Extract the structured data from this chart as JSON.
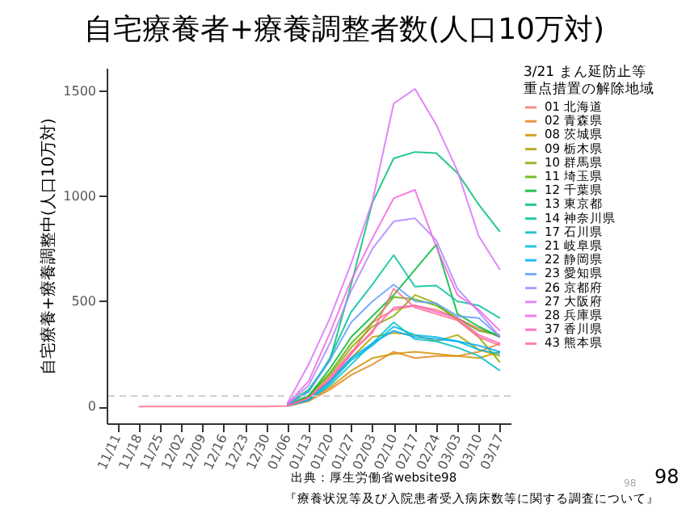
{
  "chart_data": {
    "type": "line",
    "title": "自宅療養者+療養調整者数(人口10万対)",
    "ylabel": "自宅療養+療養調整中(人口10万対)",
    "legend_title": "3/21  まん延防止等重点措置の解除地域",
    "legend": "top right",
    "categories": [
      "11/11",
      "11/18",
      "11/25",
      "12/02",
      "12/09",
      "12/16",
      "12/23",
      "12/30",
      "01/06",
      "01/13",
      "01/20",
      "01/27",
      "02/03",
      "02/10",
      "02/17",
      "02/24",
      "03/03",
      "03/10",
      "03/17"
    ],
    "ylim": [
      -80,
      1610
    ],
    "yticks": [
      0,
      500,
      1000,
      1500
    ],
    "ref_lines": [
      {
        "axis": "y",
        "value": 50,
        "color": "#cccccc",
        "line_style": "dashed"
      }
    ],
    "series": [
      {
        "name": "01 北海道",
        "color": "#F8766D",
        "values": [
          null,
          null,
          null,
          null,
          null,
          null,
          null,
          null,
          5,
          40,
          120,
          250,
          400,
          460,
          480,
          460,
          420,
          370,
          330
        ]
      },
      {
        "name": "02 青森県",
        "color": "#E7851E",
        "values": [
          null,
          null,
          null,
          null,
          null,
          null,
          null,
          null,
          2,
          25,
          80,
          150,
          200,
          260,
          230,
          240,
          240,
          260,
          300
        ]
      },
      {
        "name": "08 茨城県",
        "color": "#D09400",
        "values": [
          null,
          null,
          null,
          null,
          null,
          null,
          null,
          null,
          3,
          30,
          90,
          170,
          230,
          250,
          260,
          250,
          240,
          230,
          260
        ]
      },
      {
        "name": "09 栃木県",
        "color": "#B2A100",
        "values": [
          null,
          null,
          null,
          null,
          null,
          null,
          null,
          null,
          5,
          40,
          120,
          230,
          330,
          350,
          340,
          310,
          340,
          270,
          240
        ]
      },
      {
        "name": "10 群馬県",
        "color": "#8EAB00",
        "values": [
          null,
          null,
          null,
          null,
          null,
          null,
          null,
          null,
          5,
          50,
          150,
          280,
          380,
          430,
          530,
          490,
          410,
          330,
          210
        ]
      },
      {
        "name": "11 埼玉県",
        "color": "#5BB300",
        "values": [
          null,
          null,
          null,
          null,
          null,
          null,
          null,
          null,
          5,
          50,
          160,
          300,
          400,
          520,
          510,
          480,
          420,
          360,
          340
        ]
      },
      {
        "name": "12 千葉県",
        "color": "#00BA38",
        "values": [
          null,
          null,
          null,
          null,
          null,
          null,
          null,
          null,
          5,
          50,
          180,
          330,
          430,
          530,
          650,
          770,
          440,
          380,
          330
        ]
      },
      {
        "name": "13 東京都",
        "color": "#00BF74",
        "values": [
          null,
          null,
          null,
          null,
          null,
          null,
          null,
          null,
          10,
          80,
          220,
          580,
          970,
          1180,
          1210,
          1205,
          1110,
          960,
          830
        ]
      },
      {
        "name": "14 神奈川県",
        "color": "#00C19F",
        "values": [
          null,
          null,
          null,
          null,
          null,
          null,
          null,
          null,
          8,
          70,
          230,
          450,
          580,
          720,
          570,
          575,
          500,
          480,
          420
        ]
      },
      {
        "name": "17 石川県",
        "color": "#00BFC4",
        "values": [
          null,
          null,
          null,
          null,
          null,
          null,
          null,
          null,
          2,
          30,
          100,
          200,
          300,
          400,
          320,
          310,
          280,
          240,
          170
        ]
      },
      {
        "name": "21 岐阜県",
        "color": "#00B9E3",
        "values": [
          null,
          null,
          null,
          null,
          null,
          null,
          null,
          null,
          3,
          30,
          110,
          220,
          290,
          380,
          340,
          330,
          310,
          270,
          250
        ]
      },
      {
        "name": "22 静岡県",
        "color": "#00ADFA",
        "values": [
          null,
          null,
          null,
          null,
          null,
          null,
          null,
          null,
          3,
          35,
          120,
          230,
          300,
          360,
          330,
          320,
          310,
          290,
          260
        ]
      },
      {
        "name": "23 愛知県",
        "color": "#619CFF",
        "values": [
          null,
          null,
          null,
          null,
          null,
          null,
          null,
          null,
          8,
          70,
          220,
          400,
          500,
          580,
          500,
          490,
          430,
          420,
          330
        ]
      },
      {
        "name": "26 京都府",
        "color": "#AE87FF",
        "values": [
          null,
          null,
          null,
          null,
          null,
          null,
          null,
          null,
          10,
          100,
          300,
          550,
          750,
          880,
          895,
          790,
          560,
          450,
          330
        ]
      },
      {
        "name": "27 大阪府",
        "color": "#DB72FB",
        "values": [
          null,
          null,
          null,
          null,
          null,
          null,
          null,
          null,
          15,
          200,
          420,
          680,
          975,
          1440,
          1510,
          1340,
          1120,
          810,
          650
        ]
      },
      {
        "name": "28 兵庫県",
        "color": "#F564E3",
        "values": [
          null,
          null,
          null,
          null,
          null,
          null,
          null,
          null,
          12,
          120,
          350,
          600,
          800,
          990,
          1030,
          760,
          530,
          460,
          360
        ]
      },
      {
        "name": "37 香川県",
        "color": "#FF61C3",
        "values": [
          null,
          null,
          null,
          null,
          null,
          null,
          null,
          null,
          3,
          40,
          130,
          250,
          360,
          470,
          480,
          450,
          420,
          340,
          300
        ]
      },
      {
        "name": "43 熊本県",
        "color": "#FF6C91",
        "values": [
          null,
          0,
          0,
          0,
          0,
          0,
          0,
          0,
          3,
          40,
          140,
          260,
          350,
          560,
          470,
          440,
          410,
          330,
          290
        ]
      }
    ],
    "annotations": [
      "出典：厚生労働省website98",
      "『療養状況等及び入院患者受入病床数等に関する調査について』",
      "98",
      "98"
    ]
  }
}
